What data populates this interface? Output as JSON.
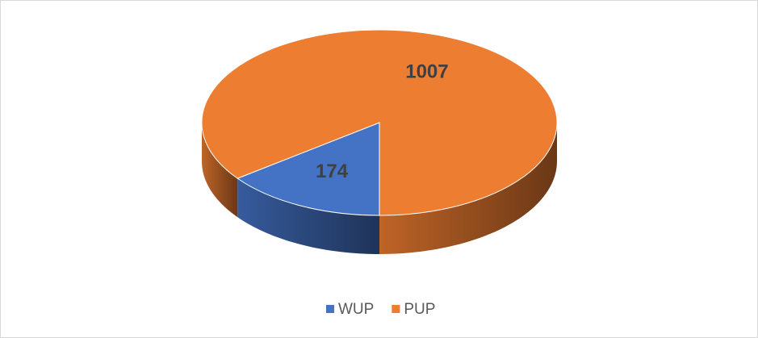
{
  "chart_data": {
    "type": "pie",
    "categories": [
      "WUP",
      "PUP"
    ],
    "values": [
      174,
      1007
    ],
    "colors": [
      "#4472c4",
      "#ed7d31"
    ],
    "legend": "bottom"
  }
}
